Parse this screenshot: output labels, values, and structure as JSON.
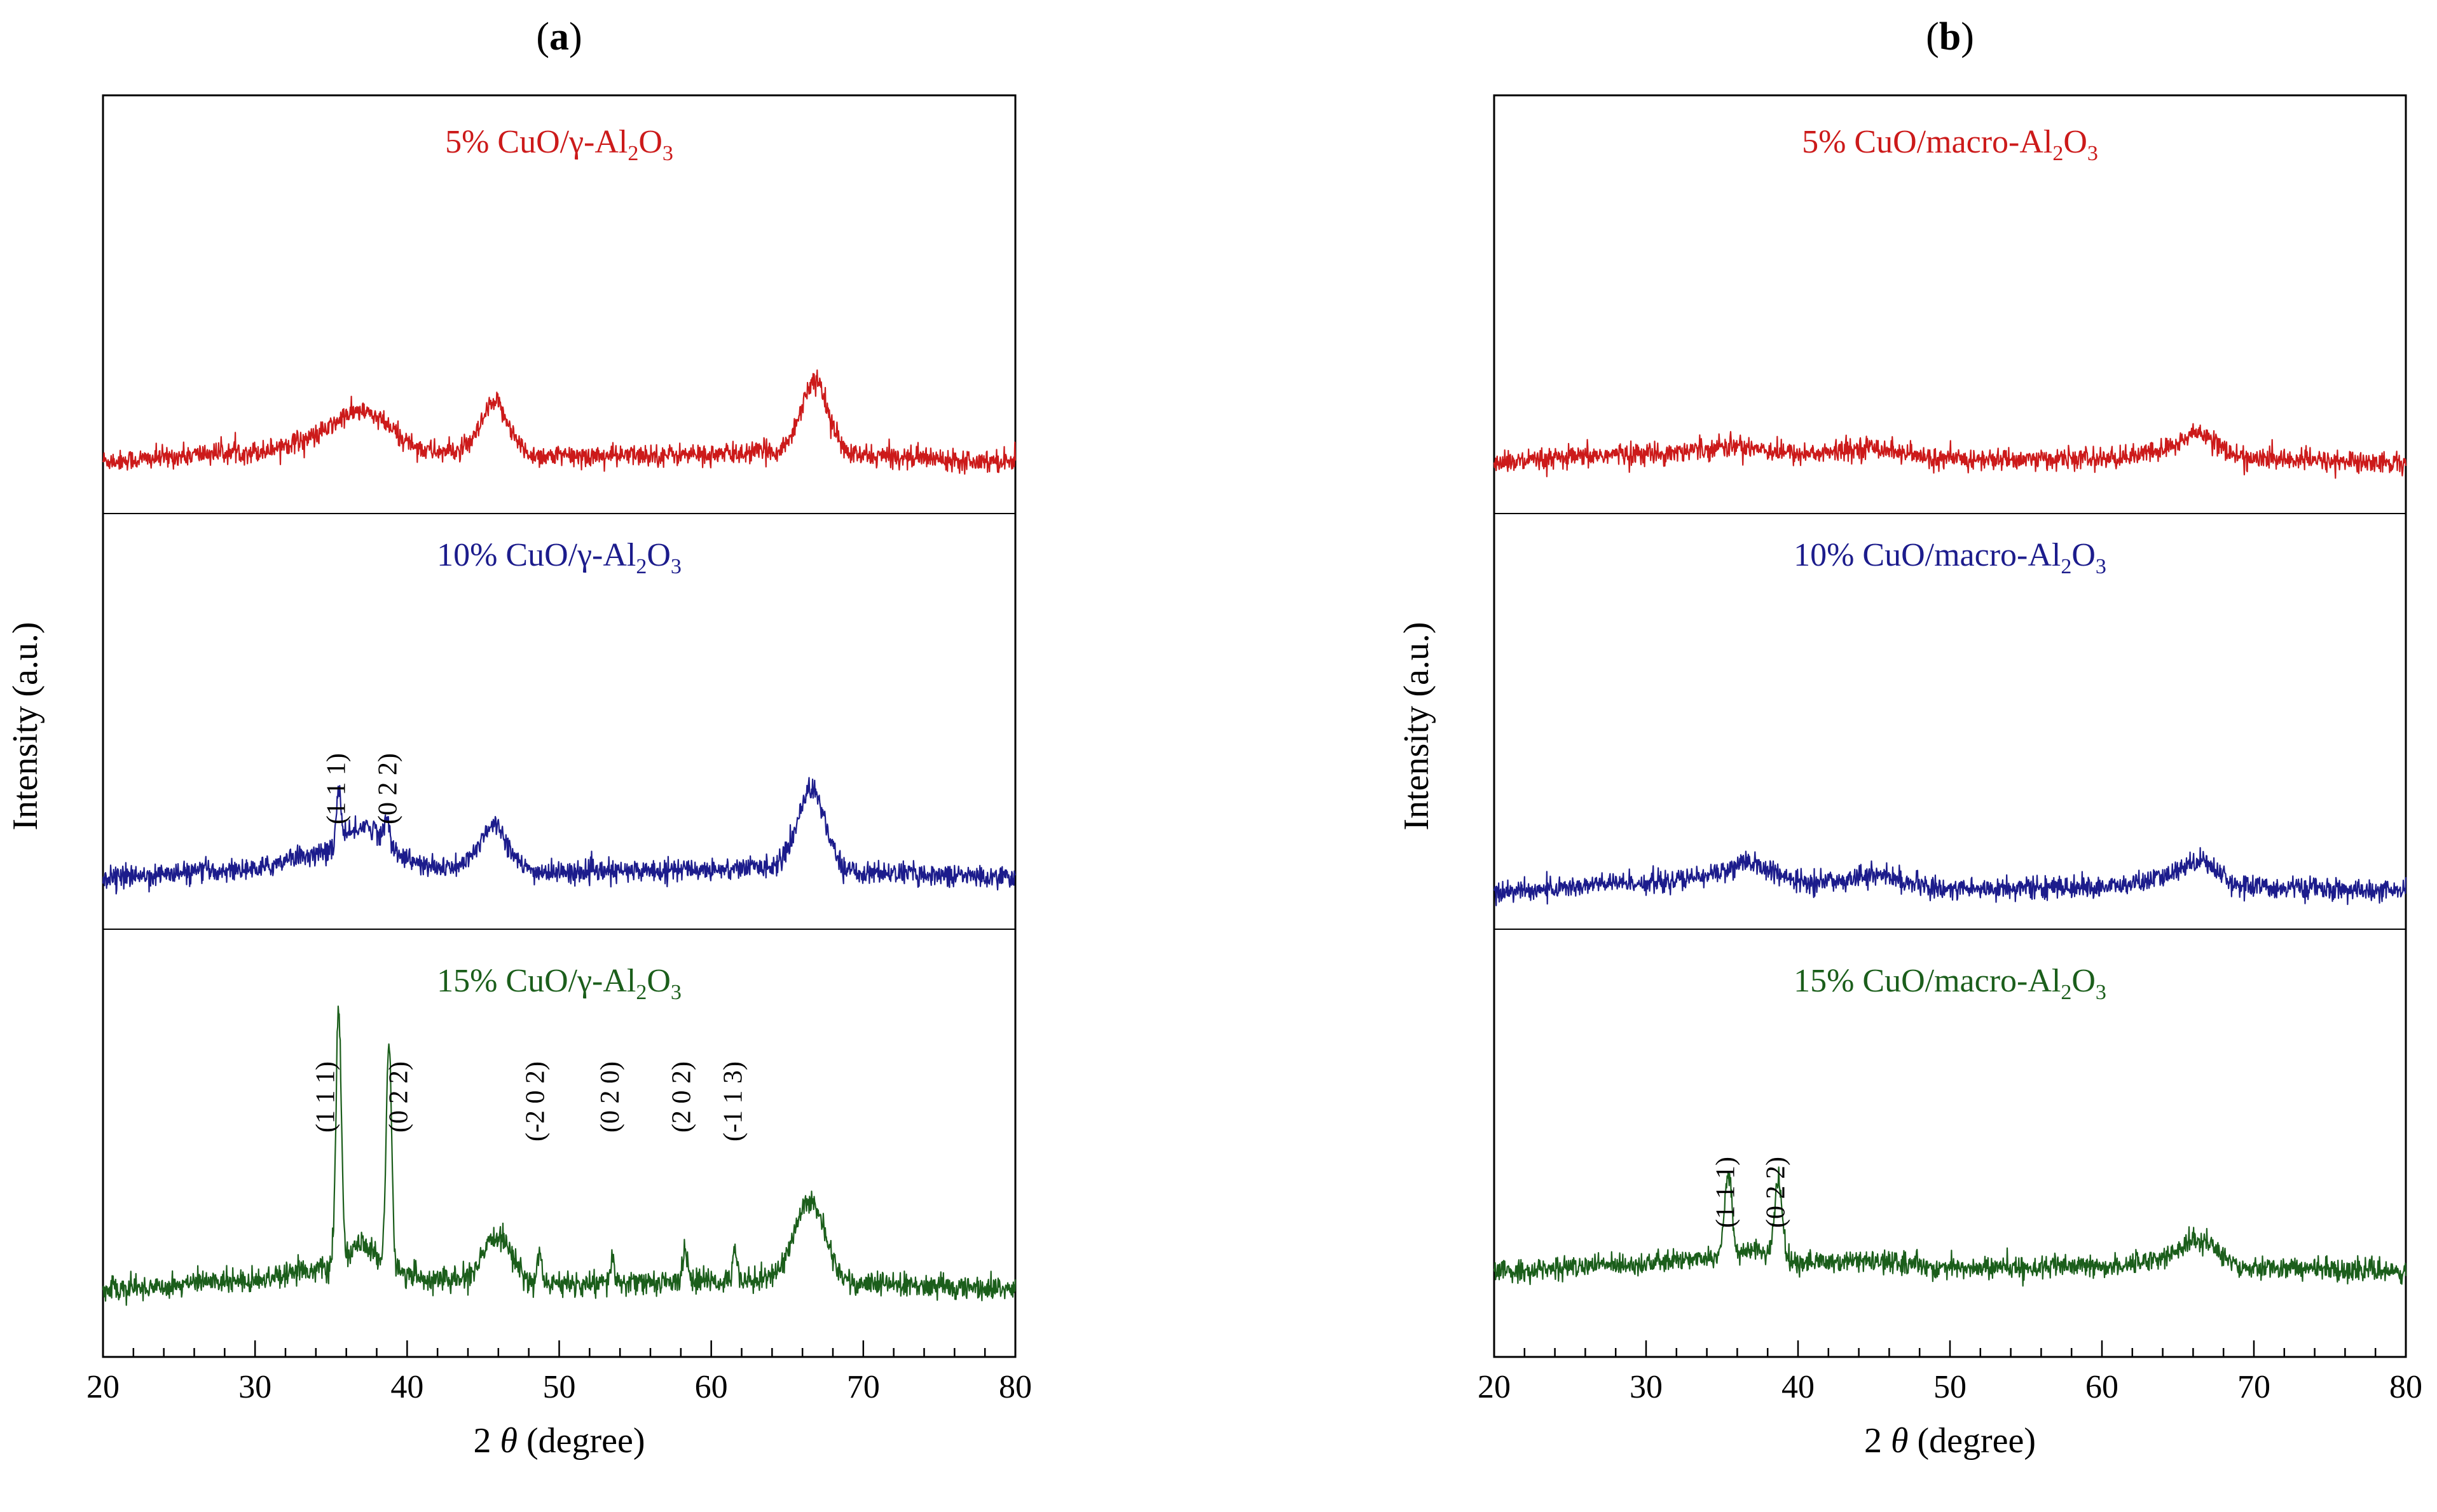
{
  "chart_data": [
    {
      "type": "line",
      "panel_label": "a",
      "xlabel_pre": "2 ",
      "xlabel_theta": "θ",
      "xlabel_post": " (degree)",
      "ylabel": "Intensity (a.u.)",
      "xlim": [
        20,
        80
      ],
      "xticks": [
        20,
        30,
        40,
        50,
        60,
        70,
        80
      ],
      "series": [
        {
          "name_parts": [
            "5% CuO/γ-Al",
            "2",
            "O",
            "3"
          ],
          "color": "#cc1a1a",
          "background": [
            [
              20,
              0.0
            ],
            [
              30,
              0.12
            ],
            [
              33,
              0.25
            ],
            [
              38,
              0.3
            ],
            [
              42,
              0.12
            ],
            [
              50,
              0.06
            ],
            [
              60,
              0.08
            ],
            [
              64,
              0.12
            ],
            [
              70,
              0.06
            ],
            [
              80,
              0.0
            ]
          ],
          "peaks": [
            {
              "x": 36.8,
              "h": 0.35,
              "w": 1.6
            },
            {
              "x": 45.8,
              "h": 0.65,
              "w": 0.9
            },
            {
              "x": 66.8,
              "h": 0.95,
              "w": 0.9
            }
          ],
          "noise": 0.2,
          "annotations": []
        },
        {
          "name_parts": [
            "10% CuO/γ-Al",
            "2",
            "O",
            "3"
          ],
          "color": "#1c1c8c",
          "background": [
            [
              20,
              0.0
            ],
            [
              30,
              0.1
            ],
            [
              33,
              0.28
            ],
            [
              38,
              0.32
            ],
            [
              42,
              0.12
            ],
            [
              50,
              0.06
            ],
            [
              60,
              0.1
            ],
            [
              64,
              0.14
            ],
            [
              70,
              0.06
            ],
            [
              80,
              0.0
            ]
          ],
          "peaks": [
            {
              "x": 35.5,
              "h": 0.75,
              "w": 0.15
            },
            {
              "x": 37.2,
              "h": 0.35,
              "w": 1.2
            },
            {
              "x": 38.7,
              "h": 0.3,
              "w": 0.15
            },
            {
              "x": 45.7,
              "h": 0.6,
              "w": 0.9
            },
            {
              "x": 66.6,
              "h": 1.05,
              "w": 0.9
            }
          ],
          "noise": 0.2,
          "annotations": [
            {
              "label": "(1 1 1)",
              "x": 35.5
            },
            {
              "label": "(0 2 2)",
              "x": 38.9
            }
          ]
        },
        {
          "name_parts": [
            "15% CuO/γ-Al",
            "2",
            "O",
            "3"
          ],
          "color": "#1b5e1b",
          "background": [
            [
              20,
              0.0
            ],
            [
              30,
              0.12
            ],
            [
              33,
              0.25
            ],
            [
              38,
              0.28
            ],
            [
              42,
              0.12
            ],
            [
              50,
              0.06
            ],
            [
              60,
              0.1
            ],
            [
              64,
              0.14
            ],
            [
              70,
              0.06
            ],
            [
              80,
              0.0
            ]
          ],
          "peaks": [
            {
              "x": 35.5,
              "h": 3.3,
              "w": 0.18
            },
            {
              "x": 38.8,
              "h": 2.9,
              "w": 0.18
            },
            {
              "x": 37.0,
              "h": 0.3,
              "w": 0.8
            },
            {
              "x": 46.0,
              "h": 0.6,
              "w": 0.9
            },
            {
              "x": 48.7,
              "h": 0.4,
              "w": 0.15
            },
            {
              "x": 53.5,
              "h": 0.35,
              "w": 0.12
            },
            {
              "x": 58.3,
              "h": 0.45,
              "w": 0.15
            },
            {
              "x": 61.6,
              "h": 0.4,
              "w": 0.15
            },
            {
              "x": 66.5,
              "h": 1.05,
              "w": 1.0
            }
          ],
          "noise": 0.22,
          "annotations": [
            {
              "label": "(1 1 1)",
              "x": 34.8
            },
            {
              "label": "(0 2 2)",
              "x": 39.6
            },
            {
              "label": "(-2 0 2)",
              "x": 48.6
            },
            {
              "label": "(0 2 0)",
              "x": 53.5
            },
            {
              "label": "(2 0 2)",
              "x": 58.2
            },
            {
              "label": "(-1 1 3)",
              "x": 61.6
            }
          ]
        }
      ]
    },
    {
      "type": "line",
      "panel_label": "b",
      "xlabel_pre": "2 ",
      "xlabel_theta": "θ",
      "xlabel_post": " (degree)",
      "ylabel": "Intensity (a.u.)",
      "xlim": [
        20,
        80
      ],
      "xticks": [
        20,
        30,
        40,
        50,
        60,
        70,
        80
      ],
      "series": [
        {
          "name_parts": [
            "5% CuO/macro-Al",
            "2",
            "O",
            "3"
          ],
          "color": "#cc1a1a",
          "background": [
            [
              20,
              0.0
            ],
            [
              30,
              0.12
            ],
            [
              36,
              0.22
            ],
            [
              40,
              0.12
            ],
            [
              45,
              0.12
            ],
            [
              50,
              0.04
            ],
            [
              60,
              0.05
            ],
            [
              66,
              0.2
            ],
            [
              70,
              0.05
            ],
            [
              80,
              0.0
            ]
          ],
          "peaks": [
            {
              "x": 44.8,
              "h": 0.08,
              "w": 1.5
            },
            {
              "x": 66.5,
              "h": 0.2,
              "w": 1.0
            }
          ],
          "noise": 0.2,
          "annotations": []
        },
        {
          "name_parts": [
            "10% CuO/macro-Al",
            "2",
            "O",
            "3"
          ],
          "color": "#1c1c8c",
          "background": [
            [
              20,
              0.0
            ],
            [
              30,
              0.12
            ],
            [
              36,
              0.22
            ],
            [
              40,
              0.12
            ],
            [
              45,
              0.12
            ],
            [
              50,
              0.04
            ],
            [
              60,
              0.06
            ],
            [
              66,
              0.22
            ],
            [
              70,
              0.06
            ],
            [
              80,
              0.0
            ]
          ],
          "peaks": [
            {
              "x": 37.0,
              "h": 0.15,
              "w": 1.5
            },
            {
              "x": 45.0,
              "h": 0.1,
              "w": 1.5
            },
            {
              "x": 66.5,
              "h": 0.2,
              "w": 1.0
            }
          ],
          "noise": 0.2,
          "annotations": []
        },
        {
          "name_parts": [
            "15% CuO/macro-Al",
            "2",
            "O",
            "3"
          ],
          "color": "#1b5e1b",
          "background": [
            [
              20,
              0.0
            ],
            [
              30,
              0.1
            ],
            [
              35,
              0.2
            ],
            [
              40,
              0.12
            ],
            [
              46,
              0.12
            ],
            [
              50,
              0.04
            ],
            [
              60,
              0.06
            ],
            [
              66,
              0.22
            ],
            [
              70,
              0.05
            ],
            [
              80,
              0.0
            ]
          ],
          "peaks": [
            {
              "x": 35.4,
              "h": 1.05,
              "w": 0.25
            },
            {
              "x": 38.7,
              "h": 1.05,
              "w": 0.25
            },
            {
              "x": 37.0,
              "h": 0.1,
              "w": 0.8
            },
            {
              "x": 66.5,
              "h": 0.2,
              "w": 1.0
            }
          ],
          "noise": 0.2,
          "annotations": [
            {
              "label": "(1 1 1)",
              "x": 35.4
            },
            {
              "label": "(0 2 2)",
              "x": 38.7
            }
          ]
        }
      ]
    }
  ]
}
